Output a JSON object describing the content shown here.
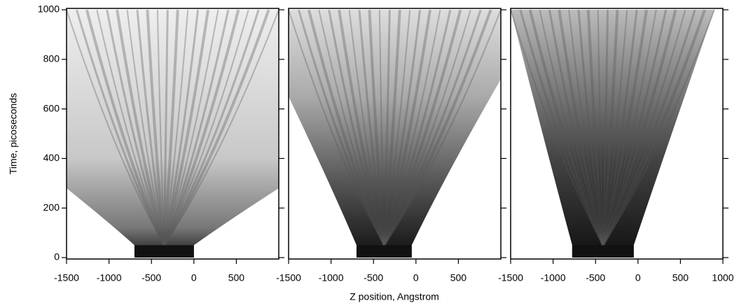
{
  "chart_data": {
    "type": "image",
    "y_label": "Time, picoseconds",
    "x_label": "Z position, Angstrom",
    "ylim": [
      0,
      1000
    ],
    "yticks": [
      0,
      200,
      400,
      600,
      800,
      1000
    ],
    "panels": [
      {
        "xlim": [
          -1500,
          1000
        ],
        "xticks": [
          -1500,
          -1000,
          -500,
          0,
          500
        ]
      },
      {
        "xlim": [
          -1500,
          1000
        ],
        "xticks": [
          -1500,
          -1000,
          -500,
          0,
          500
        ]
      },
      {
        "xlim": [
          -1500,
          1000
        ],
        "xticks": [
          -1500,
          -1000,
          -500,
          0,
          500,
          1000
        ]
      }
    ]
  }
}
